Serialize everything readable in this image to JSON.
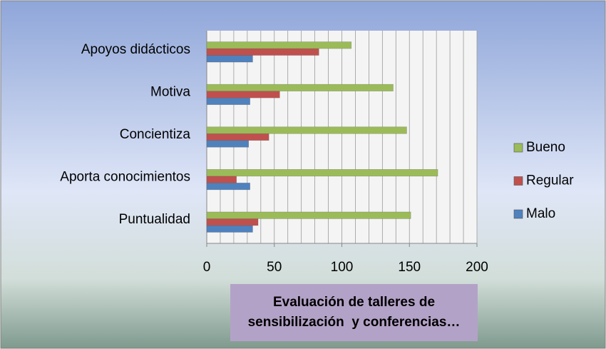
{
  "chart_data": {
    "type": "hbar",
    "title": "Evaluación de talleres de sensibilización  y conferencias…",
    "categories": [
      "Puntualidad",
      "Aporta conocimientos",
      "Concientiza",
      "Motiva",
      "Apoyos didácticos"
    ],
    "series": [
      {
        "name": "Malo",
        "color": "#4f81bd",
        "values": [
          34,
          32,
          31,
          32,
          34
        ]
      },
      {
        "name": "Regular",
        "color": "#c0504d",
        "values": [
          38,
          22,
          46,
          54,
          83
        ]
      },
      {
        "name": "Bueno",
        "color": "#9bbb59",
        "values": [
          151,
          171,
          148,
          138,
          107
        ]
      }
    ],
    "xlim": [
      0,
      200
    ],
    "xticks": [
      0,
      50,
      100,
      150,
      200
    ],
    "minor_xticks": [
      0,
      10,
      20,
      30,
      40,
      50,
      60,
      70,
      80,
      90,
      100,
      110,
      120,
      130,
      140,
      150,
      160,
      170,
      180,
      190,
      200
    ],
    "grid": true,
    "legend": "right"
  }
}
